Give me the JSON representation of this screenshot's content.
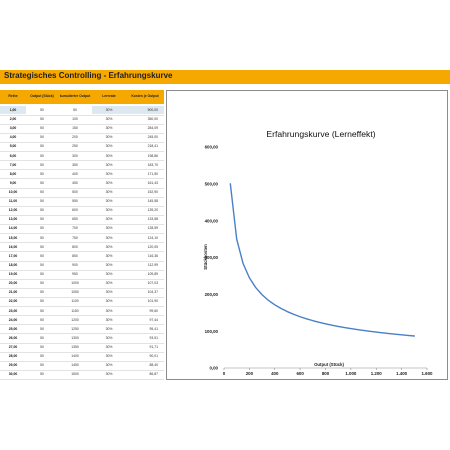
{
  "header": {
    "title": "Strategisches Controlling - Erfahrungskurve"
  },
  "table": {
    "columns": [
      "Reihe",
      "Output (Stück)",
      "kumulierter Output",
      "Lernrate",
      "Kosten je Output"
    ],
    "rows": [
      [
        "1,00",
        "50",
        "50",
        "30%",
        "500,00"
      ],
      [
        "2,00",
        "50",
        "100",
        "30%",
        "350,00"
      ],
      [
        "3,00",
        "50",
        "150",
        "30%",
        "284,09"
      ],
      [
        "4,00",
        "50",
        "200",
        "30%",
        "245,00"
      ],
      [
        "5,00",
        "50",
        "250",
        "30%",
        "218,41"
      ],
      [
        "6,00",
        "50",
        "300",
        "30%",
        "198,86"
      ],
      [
        "7,00",
        "50",
        "350",
        "30%",
        "183,70"
      ],
      [
        "8,00",
        "50",
        "400",
        "30%",
        "171,50"
      ],
      [
        "9,00",
        "50",
        "450",
        "30%",
        "161,43"
      ],
      [
        "10,00",
        "50",
        "500",
        "30%",
        "152,90"
      ],
      [
        "11,00",
        "50",
        "550",
        "30%",
        "145,58"
      ],
      [
        "12,00",
        "50",
        "600",
        "30%",
        "139,20"
      ],
      [
        "13,00",
        "50",
        "650",
        "30%",
        "133,58"
      ],
      [
        "14,00",
        "50",
        "700",
        "30%",
        "128,59"
      ],
      [
        "15,00",
        "50",
        "750",
        "30%",
        "124,10"
      ],
      [
        "16,00",
        "50",
        "800",
        "30%",
        "120,05"
      ],
      [
        "17,00",
        "50",
        "850",
        "30%",
        "116,36"
      ],
      [
        "18,00",
        "50",
        "900",
        "30%",
        "112,99"
      ],
      [
        "19,00",
        "50",
        "950",
        "30%",
        "109,89"
      ],
      [
        "20,00",
        "50",
        "1000",
        "30%",
        "107,03"
      ],
      [
        "21,00",
        "50",
        "1050",
        "30%",
        "104,37"
      ],
      [
        "22,00",
        "50",
        "1100",
        "30%",
        "101,90"
      ],
      [
        "23,00",
        "50",
        "1150",
        "30%",
        "99,60"
      ],
      [
        "24,00",
        "50",
        "1200",
        "30%",
        "97,44"
      ],
      [
        "25,00",
        "50",
        "1250",
        "30%",
        "95,41"
      ],
      [
        "26,00",
        "50",
        "1300",
        "30%",
        "93,51"
      ],
      [
        "27,00",
        "50",
        "1350",
        "30%",
        "91,71"
      ],
      [
        "28,00",
        "50",
        "1400",
        "30%",
        "90,01"
      ],
      [
        "29,00",
        "50",
        "1450",
        "30%",
        "88,40"
      ],
      [
        "30,00",
        "50",
        "1500",
        "30%",
        "86,87"
      ]
    ]
  },
  "chart_data": {
    "type": "line",
    "title": "Erfahrungskurve (Lerneffekt)",
    "xlabel": "Output (Stück)",
    "ylabel": "Stückkosten",
    "xlim": [
      0,
      1600
    ],
    "ylim": [
      0,
      600
    ],
    "x_ticks": [
      "0",
      "200",
      "400",
      "600",
      "800",
      "1.000",
      "1.200",
      "1.400",
      "1.600"
    ],
    "y_ticks": [
      "0,00",
      "100,00",
      "200,00",
      "300,00",
      "400,00",
      "500,00",
      "600,00"
    ],
    "grid": false,
    "line_color": "#4a7fc7",
    "series": [
      {
        "x": [
          50,
          100,
          150,
          200,
          250,
          300,
          350,
          400,
          450,
          500,
          550,
          600,
          650,
          700,
          750,
          800,
          850,
          900,
          950,
          1000,
          1050,
          1100,
          1150,
          1200,
          1250,
          1300,
          1350,
          1400,
          1450,
          1500
        ],
        "values": [
          500.0,
          350.0,
          284.09,
          245.0,
          218.41,
          198.86,
          183.7,
          171.5,
          161.43,
          152.9,
          145.58,
          139.2,
          133.58,
          128.59,
          124.1,
          120.05,
          116.36,
          112.99,
          109.89,
          107.03,
          104.37,
          101.9,
          99.6,
          97.44,
          95.41,
          93.51,
          91.71,
          90.01,
          88.4,
          86.87
        ]
      }
    ]
  },
  "colors": {
    "accent": "#f5a800",
    "highlight": "#dde8f0",
    "line": "#4a7fc7"
  }
}
